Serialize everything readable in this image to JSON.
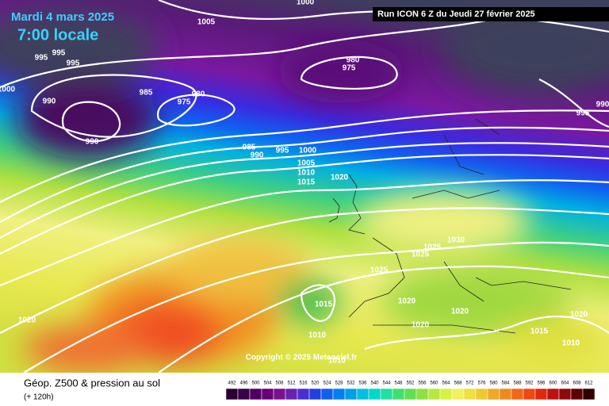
{
  "header": {
    "date": "Mardi 4 mars 2025",
    "time": "7:00 locale",
    "run": "Run ICON 6 Z du Jeudi 27 février 2025"
  },
  "footer": {
    "title": "Géop. Z500 & pression au sol",
    "lead": "(+ 120h)"
  },
  "copyright": "Copyright © 2025 Meteociel.fr",
  "colorbar": {
    "labels": [
      492,
      496,
      500,
      504,
      508,
      512,
      516,
      520,
      524,
      528,
      532,
      536,
      540,
      544,
      548,
      552,
      556,
      560,
      564,
      568,
      572,
      576,
      580,
      584,
      588,
      592,
      596,
      600,
      604,
      608,
      612
    ]
  },
  "isobar_labels": [
    "1000",
    "1005",
    "995",
    "995",
    "995",
    "980",
    "975",
    "985",
    "980",
    "975",
    "990",
    "990",
    "1000",
    "985",
    "990",
    "995",
    "1000",
    "1005",
    "1010",
    "1015",
    "1020",
    "1025",
    "1025",
    "1030",
    "1025",
    "1015",
    "1020",
    "1020",
    "1020",
    "1010",
    "1010",
    "1015",
    "1010",
    "1020",
    "1020",
    "995",
    "990"
  ]
}
